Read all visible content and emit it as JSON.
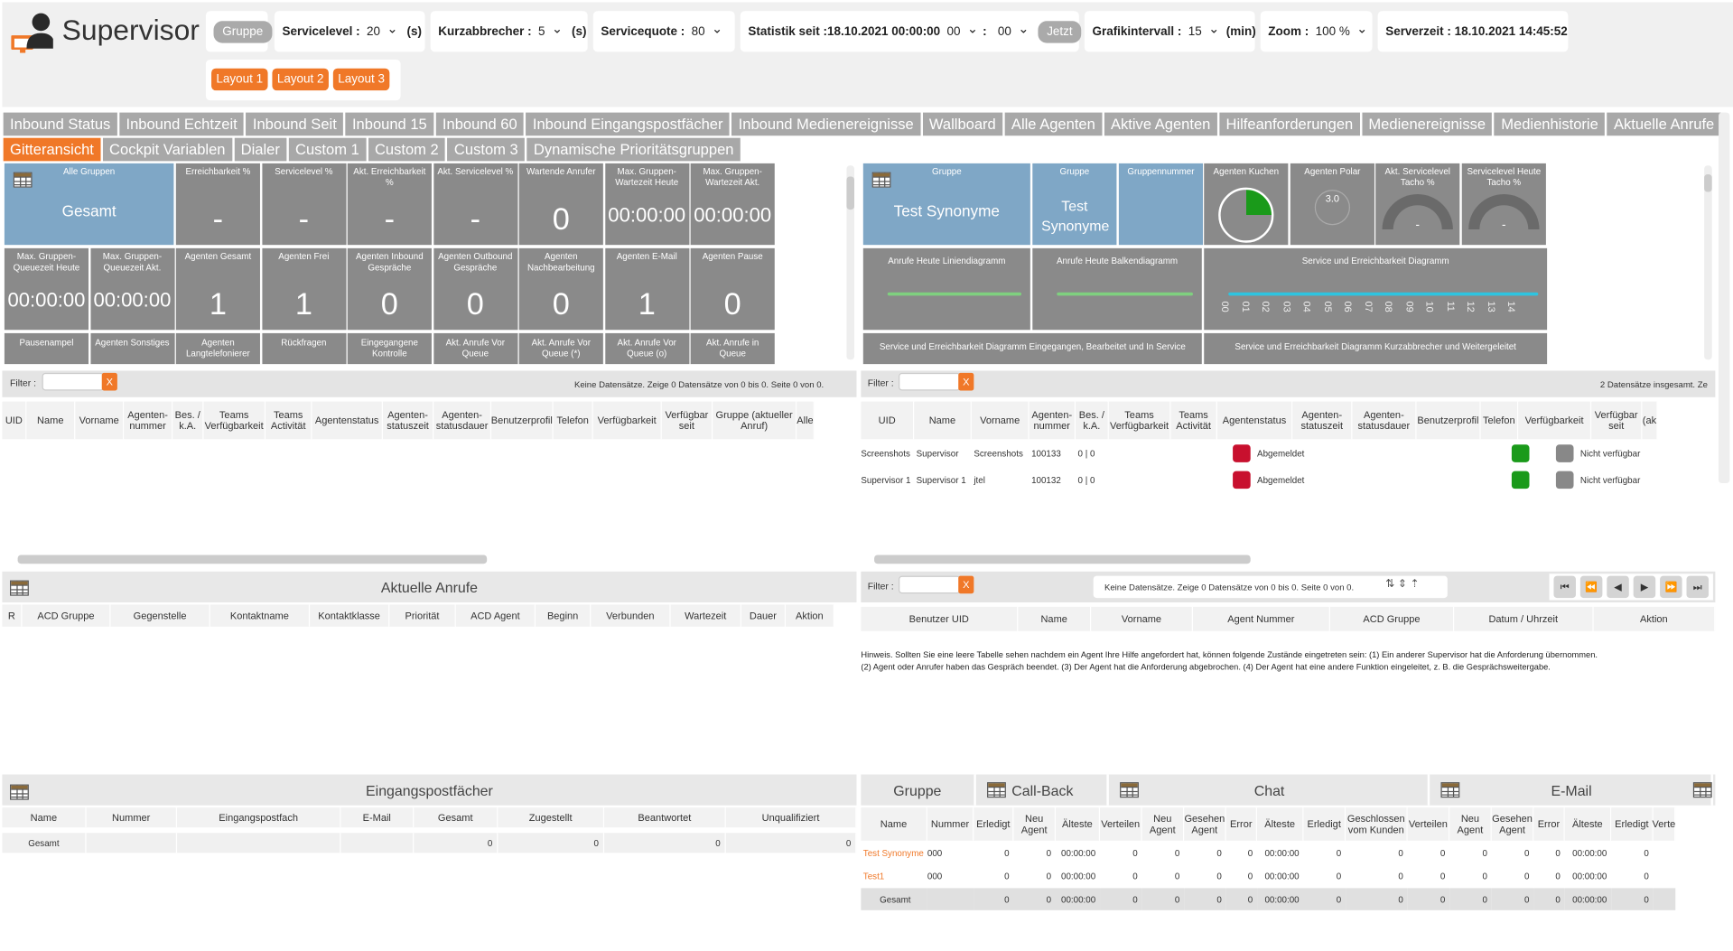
{
  "app": {
    "title": "Supervisor"
  },
  "toolbar": {
    "gruppe": "Gruppe",
    "servicelevel": {
      "label": "Servicelevel :",
      "value": "20",
      "unit": "(s)"
    },
    "kurzabbrecher": {
      "label": "Kurzabbrecher :",
      "value": "5",
      "unit": "(s)"
    },
    "servicequote": {
      "label": "Servicequote :",
      "value": "80"
    },
    "statistik": {
      "label": "Statistik seit :18.10.2021 00:00:00",
      "hour": "00",
      "sep": ":",
      "minute": "00",
      "now": "Jetzt"
    },
    "grafik": {
      "label": "Grafikintervall :",
      "value": "15",
      "unit": "(min)"
    },
    "zoom": {
      "label": "Zoom :",
      "value": "100 %"
    },
    "serverzeit": "Serverzeit : 18.10.2021 14:45:52",
    "layouts": [
      "Layout 1",
      "Layout 2",
      "Layout 3"
    ]
  },
  "tabs_row1": [
    "Inbound Status",
    "Inbound Echtzeit",
    "Inbound Seit",
    "Inbound 15",
    "Inbound 60",
    "Inbound Eingangspostfächer",
    "Inbound Medienereignisse",
    "Wallboard",
    "Alle Agenten",
    "Aktive Agenten",
    "Hilfeanforderungen",
    "Medienereignisse",
    "Medienhistorie",
    "Aktuelle Anrufe"
  ],
  "tabs_row2": [
    "Gitteransicht",
    "Cockpit Variablen",
    "Dialer",
    "Custom 1",
    "Custom 2",
    "Custom 3",
    "Dynamische Prioritätsgruppen"
  ],
  "tiles_row1": [
    {
      "label": "Alle Gruppen",
      "value": "Gesamt"
    },
    {
      "label": "Erreichbarkeit %",
      "value": "-"
    },
    {
      "label": "Servicelevel %",
      "value": "-"
    },
    {
      "label": "Akt. Erreichbarkeit %",
      "value": "-"
    },
    {
      "label": "Akt. Servicelevel %",
      "value": "-"
    },
    {
      "label": "Wartende Anrufer",
      "value": "0"
    },
    {
      "label": "Max. Gruppen-Wartezeit Heute",
      "value": "00:00:00"
    },
    {
      "label": "Max. Gruppen-Wartezeit Akt.",
      "value": "00:00:00"
    }
  ],
  "tiles_row2": [
    {
      "label": "Max. Gruppen-Queuezeit Heute",
      "value": "00:00:00"
    },
    {
      "label": "Max. Gruppen-Queuezeit Akt.",
      "value": "00:00:00"
    },
    {
      "label": "Agenten Gesamt",
      "value": "1"
    },
    {
      "label": "Agenten Frei",
      "value": "1"
    },
    {
      "label": "Agenten Inbound Gespräche",
      "value": "0"
    },
    {
      "label": "Agenten Outbound Gespräche",
      "value": "0"
    },
    {
      "label": "Agenten Nachbearbeitung",
      "value": "0"
    },
    {
      "label": "Agenten E-Mail",
      "value": "1"
    },
    {
      "label": "Agenten Pause",
      "value": "0"
    }
  ],
  "tiles_row3": [
    "Pausenampel",
    "Agenten Sonstiges",
    "Agenten Langtelefonierer",
    "Rückfragen",
    "Eingegangene Kontrolle",
    "Akt. Anrufe Vor Queue",
    "Akt. Anrufe Vor Queue (*)",
    "Akt. Anrufe Vor Queue (o)",
    "Akt. Anrufe in Queue"
  ],
  "rtiles_row1": [
    {
      "label": "Gruppe",
      "value": "Test Synonyme"
    },
    {
      "label": "Gruppe",
      "value": "Test Synonyme"
    },
    {
      "label": "Gruppennummer",
      "value": ""
    },
    {
      "label": "Agenten Kuchen"
    },
    {
      "label": "Agenten Polar",
      "value": "3.0"
    },
    {
      "label": "Akt. Servicelevel Tacho %",
      "value": "-"
    },
    {
      "label": "Servicelevel Heute Tacho %",
      "value": "-"
    }
  ],
  "rtiles_row2": [
    "Anrufe Heute Liniendiagramm",
    "Anrufe Heute Balkendiagramm",
    "Service und Erreichbarkeit Diagramm"
  ],
  "rtiles_row3": [
    "Service und Erreichbarkeit Diagramm Eingegangen, Bearbeitet und In Service",
    "Service und Erreichbarkeit Diagramm Kurzabbrecher und Weitergeleitet"
  ],
  "axis_hours": [
    "00",
    "01",
    "02",
    "03",
    "04",
    "05",
    "06",
    "07",
    "08",
    "09",
    "10",
    "11",
    "12",
    "13",
    "14"
  ],
  "left_agents": {
    "filter_label": "Filter :",
    "x": "X",
    "info": "Keine Datensätze.  Zeige 0 Datensätze von 0 bis 0.   Seite 0 von 0.",
    "columns": [
      "UID",
      "Name",
      "Vorname",
      "Agenten-nummer",
      "Bes. / k.A.",
      "Teams Verfügbarkeit",
      "Teams Activität",
      "Agentenstatus",
      "Agenten-statuszeit",
      "Agenten-statusdauer",
      "Benutzerprofil",
      "Telefon",
      "Verfügbarkeit",
      "Verfügbar seit",
      "Gruppe (aktueller Anruf)",
      "Alle"
    ]
  },
  "right_agents": {
    "filter_label": "Filter :",
    "x": "X",
    "info": "2 Datensätze insgesamt.  Ze",
    "columns": [
      "UID",
      "Name",
      "Vorname",
      "Agenten-nummer",
      "Bes. / k.A.",
      "Teams Verfügbarkeit",
      "Teams Activität",
      "Agentenstatus",
      "Agenten-statuszeit",
      "Agenten-statusdauer",
      "Benutzerprofil",
      "Telefon",
      "Verfügbarkeit",
      "Verfügbar seit",
      "(ak"
    ],
    "rows": [
      {
        "uid": "Screenshots",
        "name": "Supervisor",
        "vorname": "Screenshots",
        "nummer": "100133",
        "bes": "0 | 0",
        "status": "Abgemeldet",
        "verf": "Nicht verfügbar"
      },
      {
        "uid": "Supervisor 1",
        "name": "Supervisor 1",
        "vorname": "jtel",
        "nummer": "100132",
        "bes": "0 | 0",
        "status": "Abgemeldet",
        "verf": "Nicht verfügbar"
      }
    ]
  },
  "aktuelle_anrufe": {
    "title": "Aktuelle Anrufe",
    "columns": [
      "R",
      "ACD Gruppe",
      "Gegenstelle",
      "Kontaktname",
      "Kontaktklasse",
      "Priorität",
      "ACD Agent",
      "Beginn",
      "Verbunden",
      "Wartezeit",
      "Dauer",
      "Aktion"
    ]
  },
  "hilfe": {
    "filter_label": "Filter :",
    "x": "X",
    "info": "Keine Datensätze.  Zeige 0 Datensätze von 0 bis 0.   Seite 0 von 0.",
    "columns": [
      "Benutzer UID",
      "Name",
      "Vorname",
      "Agent Nummer",
      "ACD Gruppe",
      "Datum / Uhrzeit",
      "Aktion"
    ],
    "hint1": "Hinweis. Sollten Sie eine leere Tabelle sehen nachdem ein Agent Ihre Hilfe angefordert hat, können folgende Zustände eingetreten sein: (1) Ein anderer Supervisor hat die Anforderung übernommen.",
    "hint2": "(2) Agent oder Anrufer haben das Gespräch beendet. (3) Der Agent hat die Anforderung abgebrochen. (4) Der Agent hat eine andere Funktion eingeleitet, z. B. die Gesprächsweitergabe."
  },
  "eingang": {
    "title": "Eingangspostfächer",
    "columns": [
      "Name",
      "Nummer",
      "Eingangspostfach",
      "E-Mail",
      "Gesamt",
      "Zugestellt",
      "Beantwortet",
      "Unqualifiziert"
    ],
    "row": {
      "name": "Gesamt",
      "gesamt": "0",
      "zugestellt": "0",
      "beantwortet": "0",
      "unqualifiziert": "0"
    }
  },
  "gruppen": {
    "headers": {
      "gruppe": "Gruppe",
      "callback": "Call-Back",
      "chat": "Chat",
      "email": "E-Mail"
    },
    "columns": [
      "Name",
      "Nummer",
      "Erledigt",
      "Neu Agent",
      "Älteste",
      "Verteilen",
      "Neu Agent",
      "Gesehen Agent",
      "Error",
      "Älteste",
      "Erledigt",
      "Geschlossen vom Kunden",
      "Verteilen",
      "Neu Agent",
      "Gesehen Agent",
      "Error",
      "Älteste",
      "Erledigt",
      "Verte"
    ],
    "rows": [
      [
        "Test Synonyme",
        "000",
        "0",
        "0",
        "00:00:00",
        "0",
        "0",
        "0",
        "0",
        "00:00:00",
        "0",
        "0",
        "0",
        "0",
        "0",
        "0",
        "00:00:00",
        "0",
        ""
      ],
      [
        "Test1",
        "000",
        "0",
        "0",
        "00:00:00",
        "0",
        "0",
        "0",
        "0",
        "00:00:00",
        "0",
        "0",
        "0",
        "0",
        "0",
        "0",
        "00:00:00",
        "0",
        ""
      ],
      [
        "Gesamt",
        "",
        "0",
        "0",
        "00:00:00",
        "0",
        "0",
        "0",
        "0",
        "00:00:00",
        "0",
        "0",
        "0",
        "0",
        "0",
        "0",
        "00:00:00",
        "0",
        ""
      ]
    ]
  },
  "colors": {
    "orange": "#f07828",
    "tile": "#8a8a8a",
    "tileBlue": "#7fa7c6",
    "red": "#c8102e",
    "green": "#1a9a1a"
  }
}
